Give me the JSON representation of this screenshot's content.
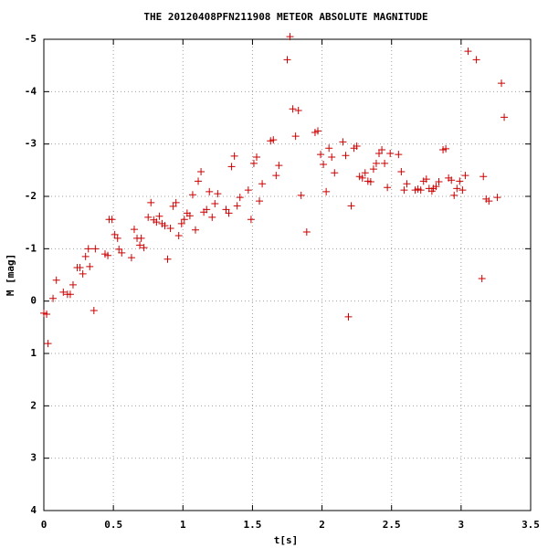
{
  "chart_data": {
    "type": "scatter",
    "title": "THE 20120408PFN211908 METEOR ABSOLUTE MAGNITUDE",
    "x_label": "t[s]",
    "y_label": "M [mag]",
    "x": [
      0.0,
      0.02,
      0.03,
      0.066,
      0.09,
      0.14,
      0.17,
      0.19,
      0.21,
      0.24,
      0.26,
      0.28,
      0.3,
      0.32,
      0.33,
      0.36,
      0.37,
      0.44,
      0.46,
      0.47,
      0.49,
      0.51,
      0.53,
      0.54,
      0.56,
      0.63,
      0.65,
      0.67,
      0.69,
      0.7,
      0.72,
      0.75,
      0.77,
      0.79,
      0.81,
      0.83,
      0.85,
      0.87,
      0.89,
      0.91,
      0.93,
      0.95,
      0.97,
      0.99,
      1.01,
      1.03,
      1.05,
      1.07,
      1.09,
      1.11,
      1.13,
      1.15,
      1.17,
      1.19,
      1.21,
      1.23,
      1.25,
      1.31,
      1.33,
      1.35,
      1.37,
      1.39,
      1.41,
      1.47,
      1.49,
      1.51,
      1.53,
      1.55,
      1.57,
      1.63,
      1.65,
      1.67,
      1.69,
      1.75,
      1.77,
      1.79,
      1.81,
      1.83,
      1.85,
      1.89,
      1.95,
      1.97,
      1.99,
      2.01,
      2.03,
      2.05,
      2.07,
      2.09,
      2.15,
      2.17,
      2.19,
      2.21,
      2.23,
      2.25,
      2.27,
      2.29,
      2.31,
      2.33,
      2.35,
      2.37,
      2.39,
      2.41,
      2.43,
      2.45,
      2.47,
      2.49,
      2.55,
      2.57,
      2.59,
      2.61,
      2.67,
      2.69,
      2.71,
      2.73,
      2.75,
      2.77,
      2.79,
      2.8,
      2.82,
      2.84,
      2.87,
      2.89,
      2.91,
      2.93,
      2.95,
      2.97,
      2.99,
      3.01,
      3.03,
      3.05,
      3.11,
      3.15,
      3.16,
      3.18,
      3.2,
      3.26,
      3.29,
      3.31
    ],
    "values": [
      0.23,
      0.25,
      0.81,
      -0.05,
      -0.4,
      -0.17,
      -0.13,
      -0.13,
      -0.31,
      -0.64,
      -0.64,
      -0.52,
      -0.85,
      -1.0,
      -0.66,
      0.18,
      -1.0,
      -0.9,
      -0.87,
      -1.56,
      -1.56,
      -1.27,
      -1.2,
      -0.99,
      -0.92,
      -0.83,
      -1.37,
      -1.2,
      -1.07,
      -1.2,
      -1.02,
      -1.6,
      -1.88,
      -1.55,
      -1.51,
      -1.62,
      -1.48,
      -1.44,
      -0.8,
      -1.39,
      -1.81,
      -1.88,
      -1.25,
      -1.48,
      -1.56,
      -1.68,
      -1.63,
      -2.03,
      -1.36,
      -2.29,
      -2.47,
      -1.7,
      -1.75,
      -2.09,
      -1.6,
      -1.86,
      -2.05,
      -1.75,
      -1.68,
      -2.57,
      -2.77,
      -1.82,
      -1.98,
      -2.12,
      -1.56,
      -2.63,
      -2.75,
      -1.91,
      -2.24,
      -3.06,
      -3.08,
      -2.4,
      -2.59,
      -4.61,
      -5.05,
      -3.67,
      -3.15,
      -3.64,
      -2.02,
      -1.32,
      -3.22,
      -3.25,
      -2.8,
      -2.61,
      -2.09,
      -2.92,
      -2.75,
      -2.45,
      -3.04,
      -2.78,
      0.3,
      -1.82,
      -2.92,
      -2.96,
      -2.38,
      -2.35,
      -2.45,
      -2.29,
      -2.28,
      -2.52,
      -2.63,
      -2.82,
      -2.89,
      -2.63,
      -2.17,
      -2.82,
      -2.8,
      -2.47,
      -2.12,
      -2.24,
      -2.12,
      -2.14,
      -2.12,
      -2.29,
      -2.33,
      -2.15,
      -2.1,
      -2.15,
      -2.19,
      -2.28,
      -2.89,
      -2.91,
      -2.35,
      -2.31,
      -2.02,
      -2.15,
      -2.29,
      -2.12,
      -2.4,
      -4.77,
      -4.61,
      -0.43,
      -2.38,
      -1.95,
      -1.91,
      -1.98,
      -4.16,
      -3.51
    ],
    "color": "#cc0000",
    "xlim": [
      0,
      3.5
    ],
    "xticks": [
      0,
      0.5,
      1,
      1.5,
      2,
      2.5,
      3,
      3.5
    ],
    "ylim": [
      4,
      -5
    ],
    "yticks": [
      -5,
      -4,
      -3,
      -2,
      -1,
      0,
      1,
      2,
      3,
      4
    ],
    "grid": true
  }
}
